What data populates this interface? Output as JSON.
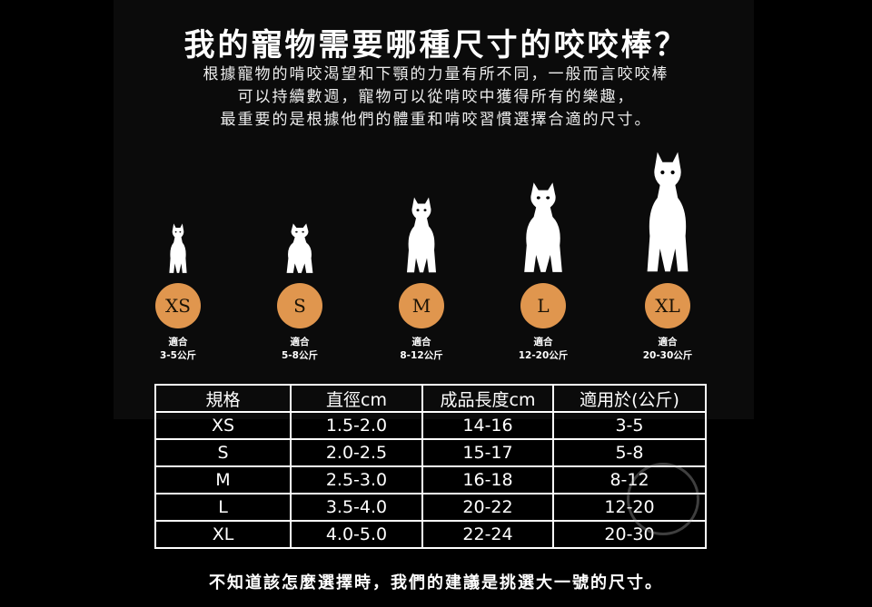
{
  "title": "我的寵物需要哪種尺寸的咬咬棒？",
  "intro": [
    "根據寵物的啃咬渴望和下顎的力量有所不同，一般而言咬咬棒",
    "可以持續數週，寵物可以從啃咬中獲得所有的樂趣，",
    "最重要的是根據他們的體重和啃咬習慣選擇合適的尺寸。"
  ],
  "accent_color": "#e0964e",
  "sizes": [
    {
      "label": "XS",
      "fit": "適合",
      "weight": "3-5公斤",
      "icon": "yorkie-dog-icon"
    },
    {
      "label": "S",
      "fit": "適合",
      "weight": "5-8公斤",
      "icon": "french-bulldog-icon"
    },
    {
      "label": "M",
      "fit": "適合",
      "weight": "8-12公斤",
      "icon": "golden-retriever-icon"
    },
    {
      "label": "L",
      "fit": "適合",
      "weight": "12-20公斤",
      "icon": "labrador-icon"
    },
    {
      "label": "XL",
      "fit": "適合",
      "weight": "20-30公斤",
      "icon": "great-dane-icon"
    }
  ],
  "table": {
    "headers": [
      "規格",
      "直徑cm",
      "成品長度cm",
      "適用於(公斤)"
    ],
    "rows": [
      [
        "XS",
        "1.5-2.0",
        "14-16",
        "3-5"
      ],
      [
        "S",
        "2.0-2.5",
        "15-17",
        "5-8"
      ],
      [
        "M",
        "2.5-3.0",
        "16-18",
        "8-12"
      ],
      [
        "L",
        "3.5-4.0",
        "20-22",
        "12-20"
      ],
      [
        "XL",
        "4.0-5.0",
        "22-24",
        "20-30"
      ]
    ]
  },
  "footer": "不知道該怎麼選擇時，我們的建議是挑選大一號的尺寸。"
}
